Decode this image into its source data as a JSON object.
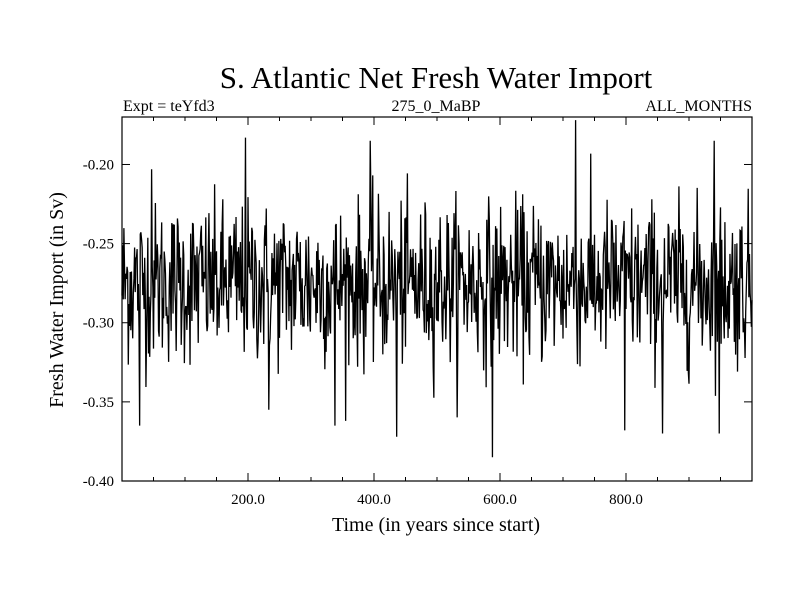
{
  "chart_data": {
    "type": "line",
    "title": "S. Atlantic Net Fresh Water Import",
    "subtitle_left": "Expt = teYfd3",
    "subtitle_center": "275_0_MaBP",
    "subtitle_right": "ALL_MONTHS",
    "xlabel": "Time (in years since start)",
    "ylabel": "Fresh Water Import (in Sv)",
    "xlim": [
      0,
      1000
    ],
    "ylim": [
      -0.4,
      -0.17
    ],
    "x_ticks": [
      200,
      400,
      600,
      800
    ],
    "x_tick_labels": [
      "200.0",
      "400.0",
      "600.0",
      "800.0"
    ],
    "y_ticks": [
      -0.4,
      -0.35,
      -0.3,
      -0.25,
      -0.2
    ],
    "y_tick_labels": [
      "-0.40",
      "-0.35",
      "-0.30",
      "-0.25",
      "-0.20"
    ],
    "grid": false,
    "series": [
      {
        "name": "Net Fresh Water Import",
        "color": "#000000",
        "x_start": 0,
        "x_step": 1,
        "mean": -0.275,
        "noise_sd": 0.025,
        "notable_points": [
          {
            "x": 28,
            "y": -0.365
          },
          {
            "x": 47,
            "y": -0.203
          },
          {
            "x": 196,
            "y": -0.183
          },
          {
            "x": 233,
            "y": -0.355
          },
          {
            "x": 338,
            "y": -0.365
          },
          {
            "x": 394,
            "y": -0.185
          },
          {
            "x": 436,
            "y": -0.372
          },
          {
            "x": 588,
            "y": -0.385
          },
          {
            "x": 720,
            "y": -0.172
          },
          {
            "x": 798,
            "y": -0.368
          },
          {
            "x": 858,
            "y": -0.37
          },
          {
            "x": 940,
            "y": -0.185
          },
          {
            "x": 948,
            "y": -0.37
          }
        ]
      }
    ]
  }
}
